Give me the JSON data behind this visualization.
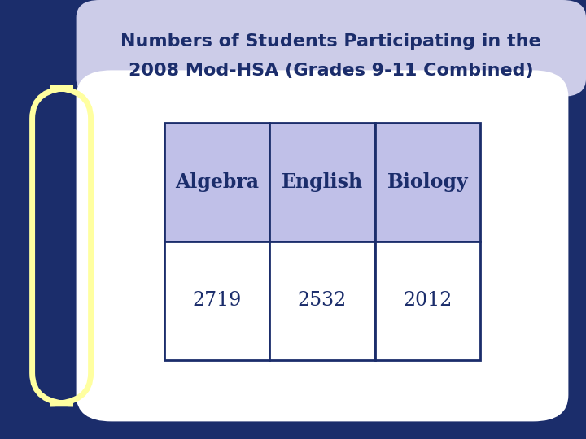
{
  "title_line1": "Numbers of Students Participating in the",
  "title_line2": "2008 Mod-HSA (Grades 9-11 Combined)",
  "headers": [
    "Algebra",
    "English",
    "Biology"
  ],
  "values": [
    "2719",
    "2532",
    "2012"
  ],
  "bg_outer": "#1b2d6b",
  "bg_inner": "#ffffff",
  "bg_title": "#cccce8",
  "header_cell_bg": "#c0c0e8",
  "value_cell_bg": "#ffffff",
  "cell_border_color": "#1b2d6b",
  "title_text_color": "#1b2d6b",
  "header_text_color": "#1b2d6b",
  "value_text_color": "#1b2d6b",
  "yellow_border_color": "#ffffa0",
  "title_fontsize": 16,
  "header_fontsize": 17,
  "value_fontsize": 17,
  "fig_width": 7.2,
  "fig_height": 5.4,
  "dpi": 100
}
